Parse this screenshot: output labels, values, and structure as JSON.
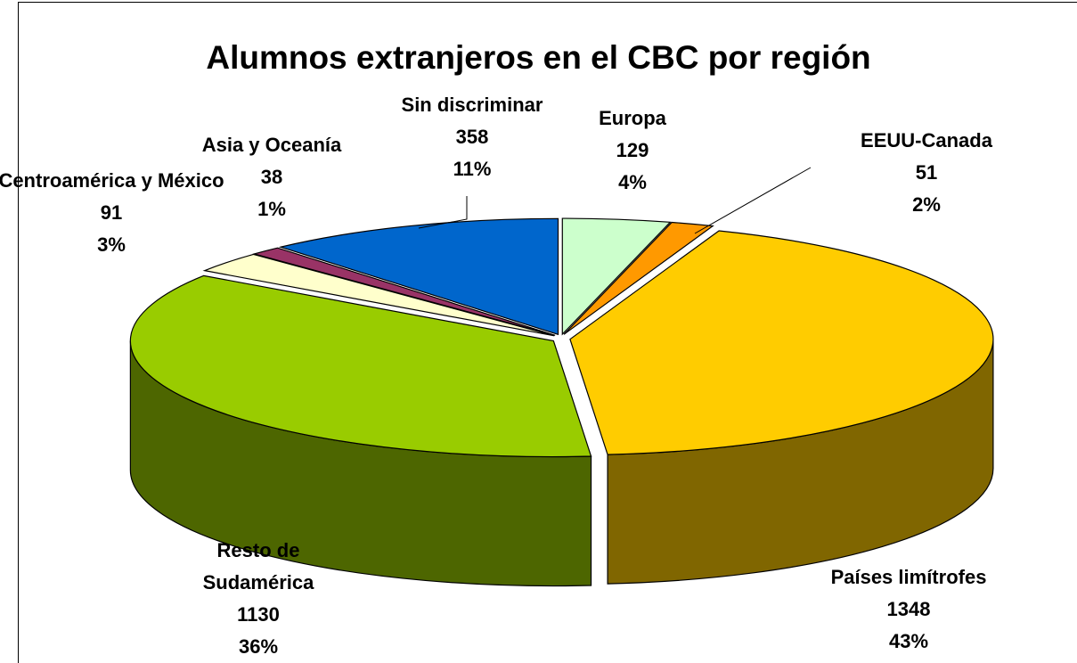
{
  "chart_data": {
    "type": "pie3d",
    "title": "Alumnos extranjeros en el CBC por región",
    "categories": [
      "Europa",
      "EEUU-Canada",
      "Países limítrofes",
      "Resto de Sudamérica",
      "Centroamérica y México",
      "Asia y Oceanía",
      "Sin discriminar"
    ],
    "values": [
      129,
      51,
      1348,
      1130,
      91,
      38,
      358
    ],
    "percents": [
      {
        "value": 4,
        "label": "4%"
      },
      {
        "value": 2,
        "label": "2%"
      },
      {
        "value": 43,
        "label": "43%"
      },
      {
        "value": 36,
        "label": "36%"
      },
      {
        "value": 3,
        "label": "3%"
      },
      {
        "value": 1,
        "label": "1%"
      },
      {
        "value": 11,
        "label": "11%"
      }
    ],
    "colors": [
      "#ccffcc",
      "#ff9900",
      "#ffcc00",
      "#99cc00",
      "#ffffcc",
      "#993366",
      "#0066cc"
    ]
  }
}
